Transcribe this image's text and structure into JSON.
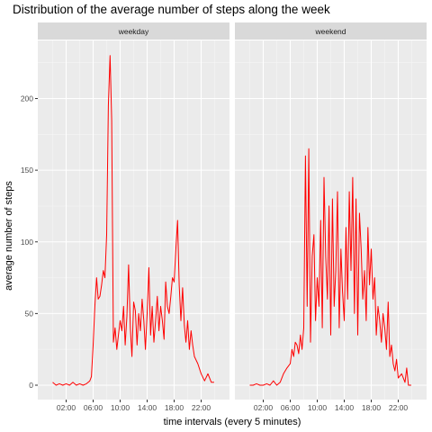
{
  "chart_data": {
    "type": "line",
    "title": "Distribution of the average number of steps along the week",
    "xlabel": "time intervals (every 5 minutes)",
    "ylabel": "average number of steps",
    "x_unit": "hours",
    "xlim": [
      0,
      24
    ],
    "ylim": [
      0,
      230
    ],
    "x_ticks": [
      2,
      6,
      10,
      14,
      18,
      22
    ],
    "x_tick_labels": [
      "02:00",
      "06:00",
      "10:00",
      "14:00",
      "18:00",
      "22:00"
    ],
    "y_ticks": [
      0,
      50,
      100,
      150,
      200
    ],
    "y_tick_labels": [
      "0",
      "50",
      "100",
      "150",
      "200"
    ],
    "line_color": "#ff0000",
    "panel_background": "#ebebeb",
    "strip_background": "#d9d9d9",
    "grid": true,
    "panels": [
      {
        "name": "weekday",
        "x": [
          0.0,
          0.5,
          1.0,
          1.5,
          2.0,
          2.5,
          3.0,
          3.5,
          4.0,
          4.5,
          5.0,
          5.5,
          5.75,
          6.0,
          6.25,
          6.5,
          6.75,
          7.0,
          7.25,
          7.5,
          7.75,
          8.0,
          8.25,
          8.5,
          8.75,
          9.0,
          9.25,
          9.5,
          9.75,
          10.0,
          10.25,
          10.5,
          10.75,
          11.0,
          11.25,
          11.5,
          11.75,
          12.0,
          12.25,
          12.5,
          12.75,
          13.0,
          13.25,
          13.5,
          13.75,
          14.0,
          14.25,
          14.5,
          14.75,
          15.0,
          15.25,
          15.5,
          15.75,
          16.0,
          16.25,
          16.5,
          16.75,
          17.0,
          17.25,
          17.5,
          17.75,
          18.0,
          18.25,
          18.5,
          18.75,
          19.0,
          19.25,
          19.5,
          19.75,
          20.0,
          20.25,
          20.5,
          20.75,
          21.0,
          21.5,
          22.0,
          22.5,
          23.0,
          23.5,
          23.92
        ],
        "y": [
          2,
          0,
          1,
          0,
          1,
          0,
          2,
          0,
          1,
          0,
          1,
          3,
          6,
          28,
          55,
          75,
          60,
          62,
          70,
          80,
          75,
          105,
          195,
          230,
          185,
          30,
          40,
          25,
          35,
          45,
          38,
          55,
          28,
          48,
          84,
          40,
          20,
          58,
          52,
          28,
          50,
          38,
          60,
          45,
          25,
          50,
          82,
          35,
          55,
          30,
          45,
          62,
          38,
          55,
          45,
          32,
          72,
          55,
          50,
          62,
          75,
          72,
          95,
          115,
          70,
          45,
          68,
          42,
          30,
          45,
          25,
          38,
          28,
          20,
          15,
          8,
          3,
          8,
          2,
          2
        ]
      },
      {
        "name": "weekend",
        "x": [
          0.0,
          0.5,
          1.0,
          1.5,
          2.0,
          2.5,
          3.0,
          3.5,
          4.0,
          4.5,
          5.0,
          5.5,
          6.0,
          6.25,
          6.5,
          6.75,
          7.0,
          7.25,
          7.5,
          7.75,
          8.0,
          8.25,
          8.5,
          8.75,
          9.0,
          9.25,
          9.5,
          9.75,
          10.0,
          10.25,
          10.5,
          10.75,
          11.0,
          11.25,
          11.5,
          11.75,
          12.0,
          12.25,
          12.5,
          12.75,
          13.0,
          13.25,
          13.5,
          13.75,
          14.0,
          14.25,
          14.5,
          14.75,
          15.0,
          15.25,
          15.5,
          15.75,
          16.0,
          16.25,
          16.5,
          16.75,
          17.0,
          17.25,
          17.5,
          17.75,
          18.0,
          18.25,
          18.5,
          18.75,
          19.0,
          19.25,
          19.5,
          19.75,
          20.0,
          20.25,
          20.5,
          20.75,
          21.0,
          21.25,
          21.5,
          21.75,
          22.0,
          22.5,
          23.0,
          23.25,
          23.5,
          23.92
        ],
        "y": [
          0,
          0,
          1,
          0,
          0,
          1,
          0,
          3,
          0,
          2,
          8,
          12,
          15,
          25,
          20,
          30,
          28,
          22,
          35,
          25,
          40,
          160,
          55,
          165,
          30,
          90,
          105,
          45,
          75,
          55,
          115,
          40,
          145,
          90,
          60,
          125,
          35,
          130,
          55,
          80,
          135,
          40,
          95,
          65,
          45,
          110,
          60,
          135,
          80,
          145,
          50,
          130,
          35,
          120,
          95,
          60,
          80,
          45,
          110,
          70,
          95,
          60,
          75,
          35,
          55,
          45,
          30,
          50,
          40,
          25,
          58,
          20,
          28,
          15,
          10,
          18,
          5,
          8,
          2,
          12,
          0,
          0
        ]
      }
    ]
  }
}
